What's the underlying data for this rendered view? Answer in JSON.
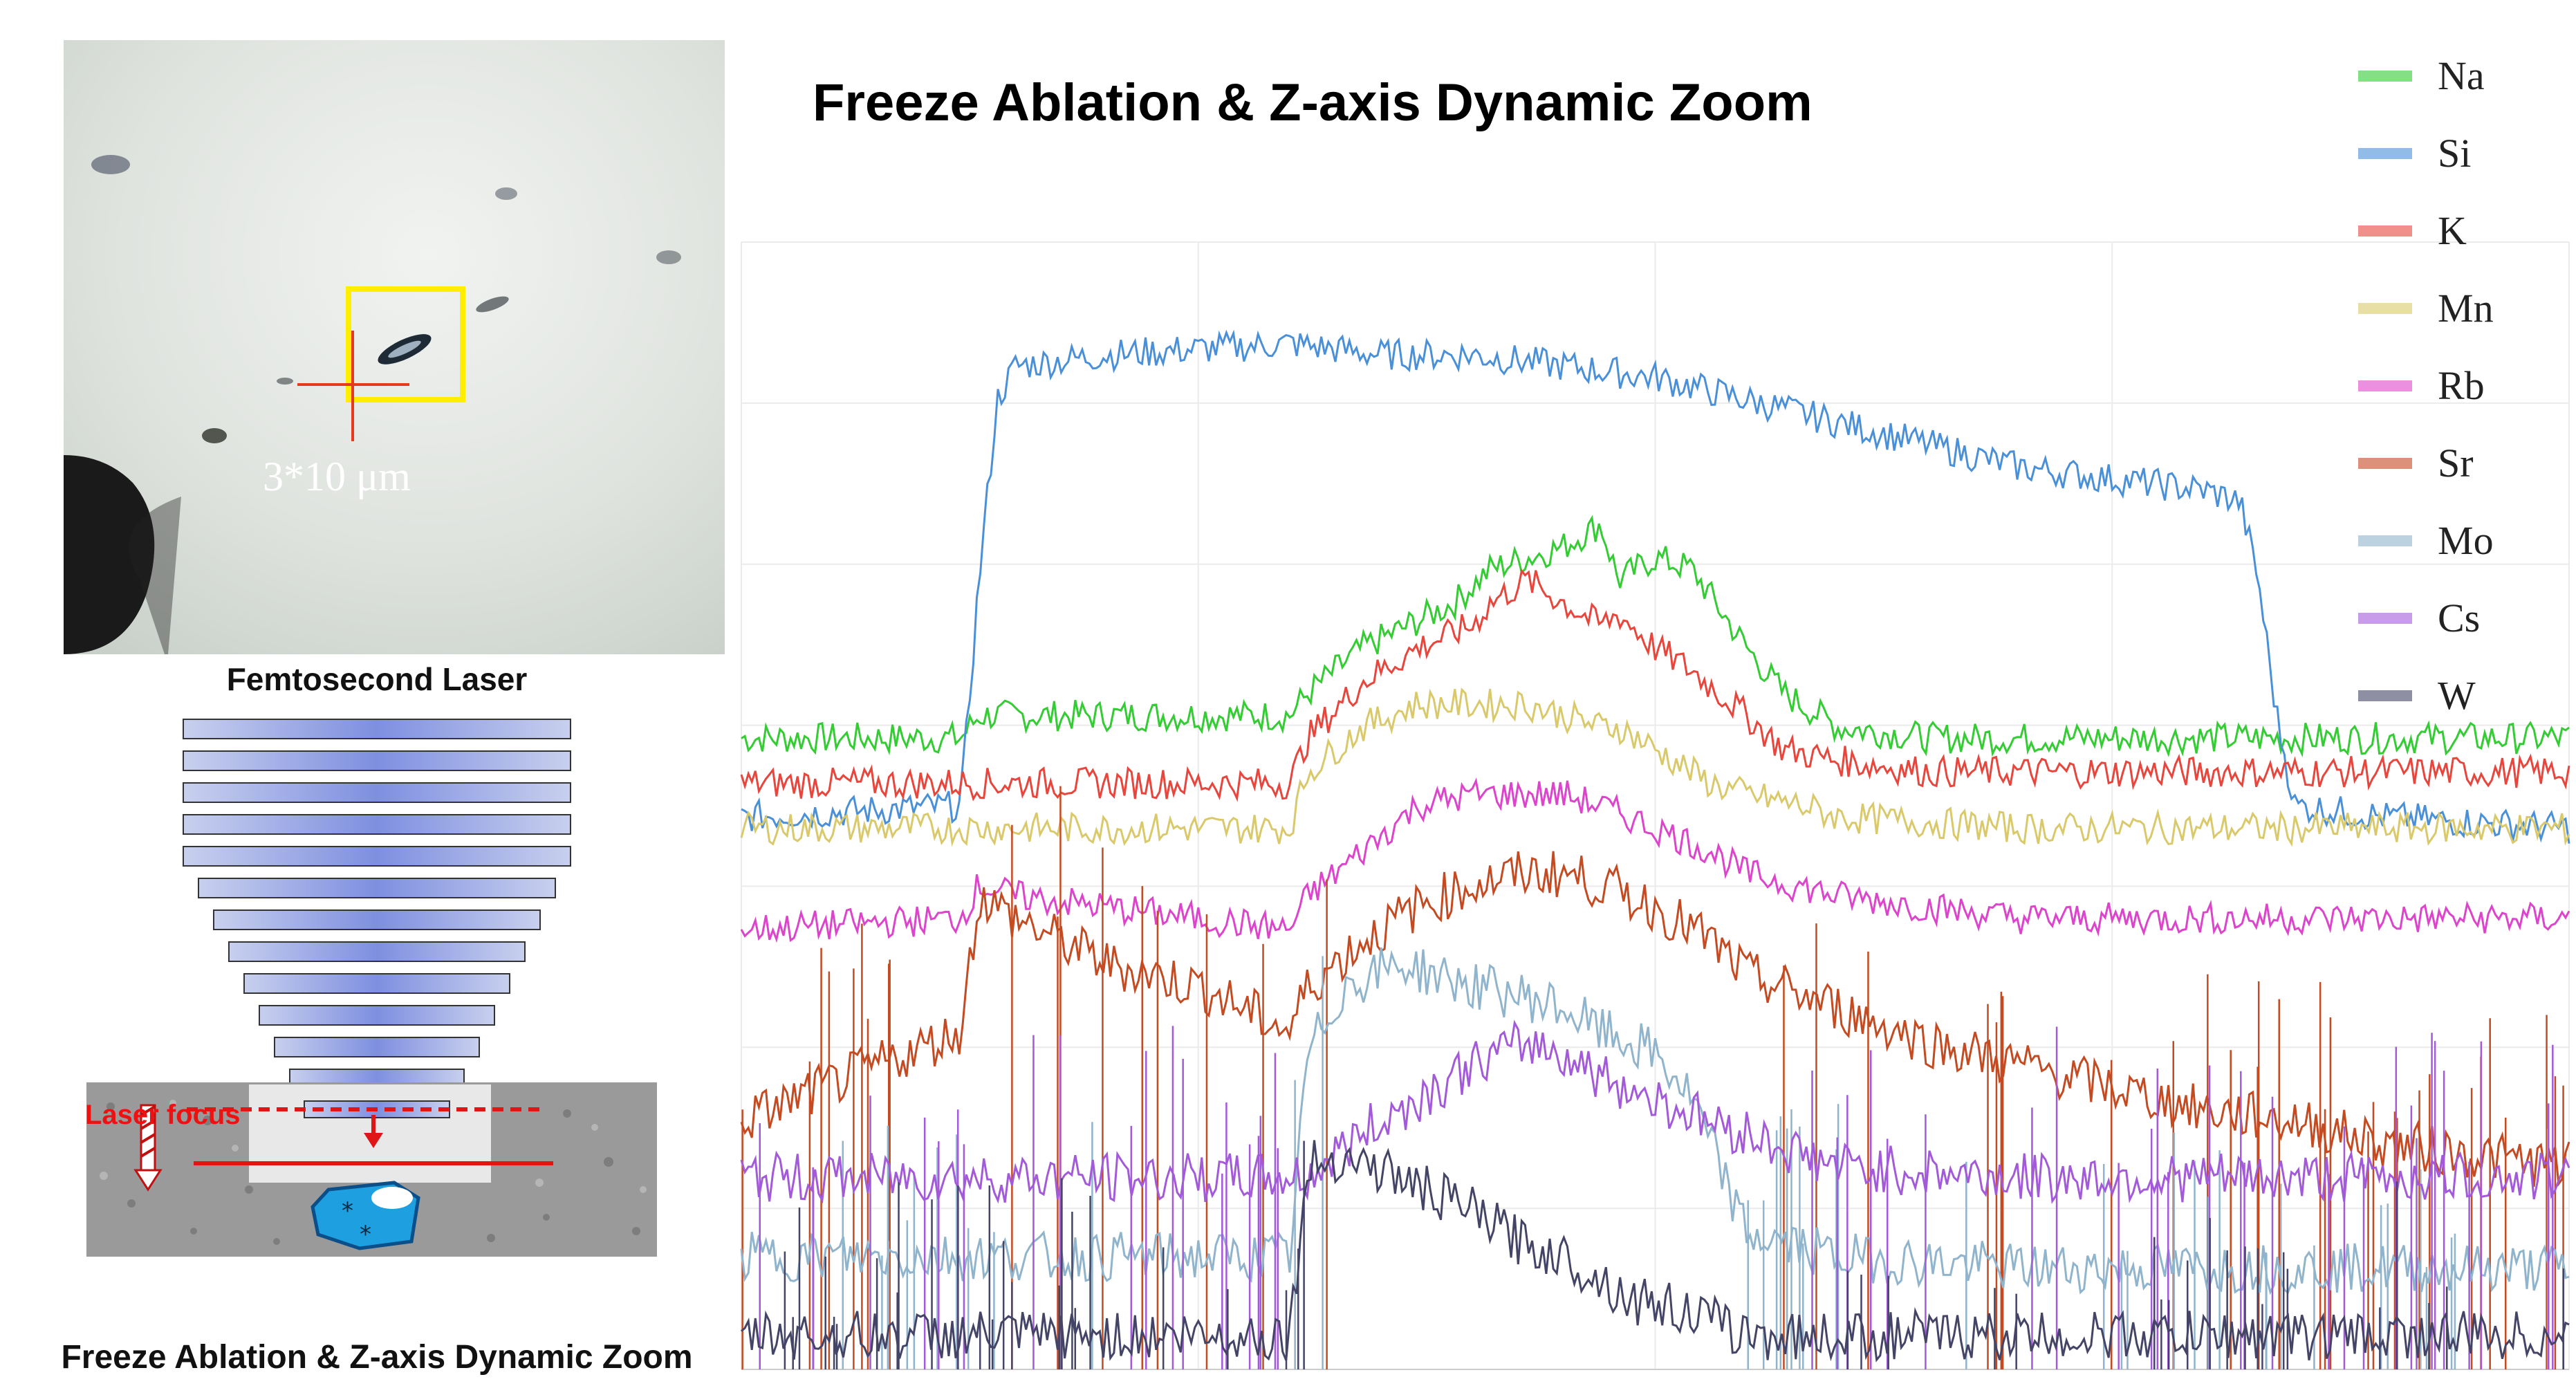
{
  "left_panel": {
    "scale_label": "3*10 μm",
    "laser_title": "Femtosecond Laser",
    "focus_label": "Laser focus",
    "bottom_title": "Freeze Ablation & Z-axis Dynamic Zoom"
  },
  "chart_data": {
    "type": "line",
    "title": "Freeze Ablation & Z-axis Dynamic Zoom",
    "xlabel": "",
    "ylabel": "",
    "xlim": [
      0,
      100
    ],
    "ylim": [
      0,
      100
    ],
    "grid": true,
    "legend_position": "top-right",
    "series": [
      {
        "name": "Na",
        "color": "#33cc33",
        "x": [
          0,
          12,
          13,
          30,
          31,
          34,
          39,
          41,
          43,
          45,
          47,
          48,
          50,
          52,
          55,
          57,
          60,
          65,
          70,
          80,
          90,
          100
        ],
        "y": [
          56,
          56,
          58,
          58,
          60,
          64,
          68,
          71,
          72,
          73,
          75,
          70,
          72,
          71,
          64,
          60,
          57,
          56,
          56,
          56,
          56,
          56
        ]
      },
      {
        "name": "Si",
        "color": "#4a90d9",
        "x": [
          0,
          12,
          13,
          14,
          15,
          20,
          30,
          35,
          40,
          45,
          50,
          55,
          60,
          65,
          70,
          75,
          80,
          82,
          83,
          84,
          85,
          90,
          100
        ],
        "y": [
          49,
          50,
          70,
          86,
          89,
          90,
          91,
          90,
          90,
          89,
          88,
          86,
          84,
          82,
          80,
          79,
          78,
          77,
          70,
          58,
          50,
          49,
          48
        ]
      },
      {
        "name": "K",
        "color": "#e8453c",
        "x": [
          0,
          30,
          31,
          34,
          37,
          40,
          41,
          43,
          45,
          47,
          48,
          50,
          52,
          55,
          57,
          60,
          65,
          70,
          80,
          90,
          100
        ],
        "y": [
          52,
          52,
          56,
          61,
          64,
          66,
          68,
          70,
          68,
          66,
          67,
          64,
          62,
          58,
          55,
          54,
          53,
          53,
          53,
          53,
          53
        ]
      },
      {
        "name": "Mn",
        "color": "#d9c96b",
        "x": [
          0,
          30,
          31,
          34,
          37,
          40,
          43,
          45,
          47,
          48,
          50,
          53,
          55,
          58,
          60,
          70,
          80,
          90,
          100
        ],
        "y": [
          48,
          48,
          53,
          57,
          59,
          59,
          59,
          58,
          57,
          57,
          55,
          52,
          51,
          50,
          49,
          48,
          48,
          48,
          48
        ]
      },
      {
        "name": "Rb",
        "color": "#dd44cc",
        "x": [
          0,
          12,
          13,
          15,
          20,
          25,
          30,
          31,
          34,
          37,
          40,
          43,
          45,
          47,
          50,
          53,
          55,
          60,
          70,
          80,
          90,
          100
        ],
        "y": [
          39,
          40,
          43,
          42,
          41,
          40,
          39,
          42,
          46,
          50,
          51,
          51,
          51,
          50,
          48,
          46,
          44,
          42,
          40,
          40,
          40,
          40
        ]
      },
      {
        "name": "Sr",
        "color": "#c44a21",
        "x": [
          0,
          12,
          13,
          15,
          20,
          25,
          30,
          31,
          34,
          37,
          40,
          43,
          45,
          47,
          50,
          53,
          55,
          60,
          65,
          70,
          75,
          80,
          85,
          90,
          100
        ],
        "y": [
          22,
          30,
          42,
          40,
          36,
          34,
          30,
          34,
          38,
          41,
          43,
          44,
          44,
          43,
          41,
          38,
          35,
          32,
          29,
          27,
          25,
          23,
          22,
          20,
          18
        ]
      },
      {
        "name": "Mo",
        "color": "#8fb4cc",
        "x": [
          0,
          30,
          31,
          33,
          36,
          40,
          43,
          45,
          47,
          50,
          52,
          55,
          60,
          70,
          80,
          90,
          100
        ],
        "y": [
          10,
          10,
          28,
          34,
          36,
          34,
          33,
          32,
          30,
          28,
          24,
          12,
          10,
          9,
          9,
          9,
          9
        ]
      },
      {
        "name": "Cs",
        "color": "#a35ad9",
        "x": [
          0,
          30,
          31,
          34,
          37,
          40,
          43,
          45,
          47,
          50,
          53,
          55,
          58,
          60,
          70,
          80,
          90,
          100
        ],
        "y": [
          17,
          17,
          17,
          21,
          24,
          27,
          29,
          28,
          26,
          24,
          22,
          21,
          19,
          18,
          17,
          17,
          17,
          17
        ]
      },
      {
        "name": "W",
        "color": "#444466",
        "x": [
          0,
          30,
          31,
          33,
          36,
          40,
          43,
          45,
          47,
          49,
          50,
          52,
          55,
          60,
          70,
          80,
          90,
          100
        ],
        "y": [
          3,
          3,
          18,
          19,
          17,
          14,
          11,
          10,
          8,
          6,
          6,
          5,
          3,
          3,
          3,
          3,
          3,
          3
        ]
      }
    ]
  }
}
